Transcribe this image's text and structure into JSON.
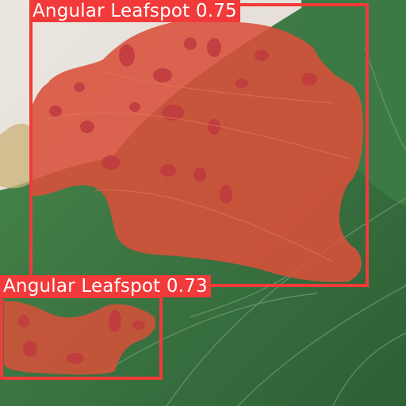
{
  "image": {
    "scene": "strawberry leaf with disease segmentation overlay",
    "colors": {
      "background": "#e9e4de",
      "leaf_green": "#3f7a45",
      "leaf_dark": "#2f6436",
      "overlay_red": "#d9503a",
      "lesion": "#c9443e",
      "box": "#f23a3a",
      "label_text": "#ffffff"
    }
  },
  "detections": [
    {
      "class_name": "Angular Leafspot",
      "confidence": "0.75",
      "label": "Angular Leafspot 0.75"
    },
    {
      "class_name": "Angular Leafspot",
      "confidence": "0.73",
      "label": "Angular Leafspot 0.73"
    }
  ]
}
